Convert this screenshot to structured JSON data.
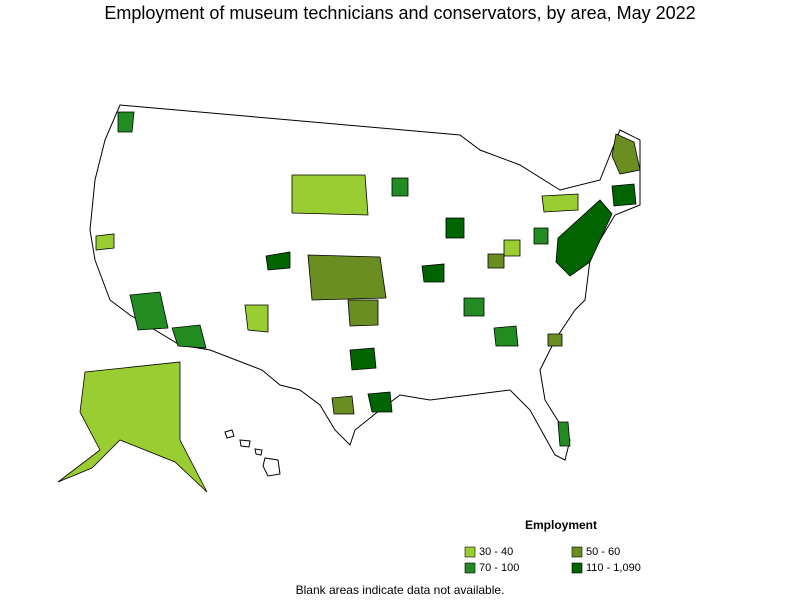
{
  "title": "Employment of museum technicians and conservators, by area, May 2022",
  "legend": {
    "title": "Employment",
    "items": [
      {
        "label": "30 - 40",
        "color": "#9acd32"
      },
      {
        "label": "50 - 60",
        "color": "#6b8e23"
      },
      {
        "label": "70 - 100",
        "color": "#228b22"
      },
      {
        "label": "110 - 1,090",
        "color": "#006400"
      }
    ]
  },
  "note": "Blank areas indicate data not available."
}
